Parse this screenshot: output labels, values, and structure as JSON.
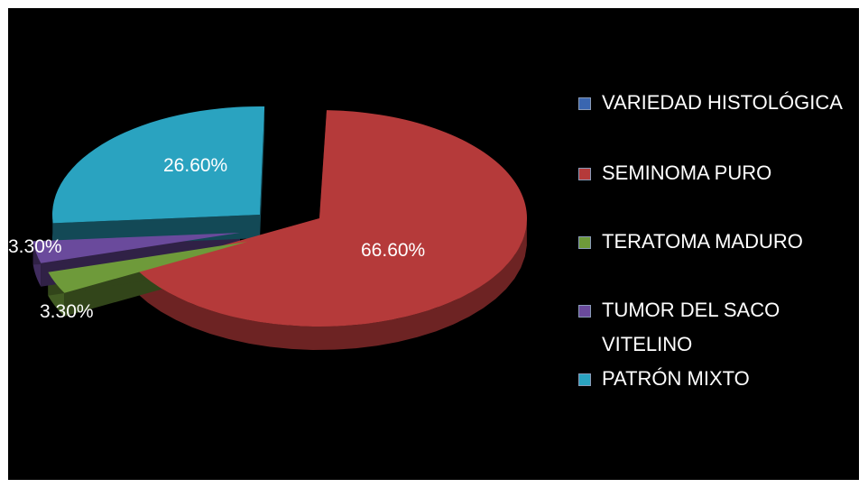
{
  "chart_data": {
    "type": "pie",
    "categories": [
      "VARIEDAD HISTOLÓGICA",
      "SEMINOMA PURO",
      "TERATOMA MADURO",
      "TUMOR DEL SACO VITELINO",
      "PATRÓN MIXTO"
    ],
    "values": [
      null,
      66.6,
      3.3,
      3.3,
      26.6
    ],
    "data_labels": [
      "",
      "66.60%",
      "3.30%",
      "3.30%",
      "26.60%"
    ],
    "colors": [
      "#3a66b0",
      "#b53a3a",
      "#6e9a3a",
      "#6a4a9c",
      "#2aa3c0"
    ],
    "style": "3d-exploded",
    "legend_position": "right"
  },
  "legend": {
    "items": [
      {
        "label": "VARIEDAD HISTOLÓGICA",
        "color": "#3a66b0"
      },
      {
        "label": "SEMINOMA PURO",
        "color": "#b53a3a"
      },
      {
        "label": "TERATOMA MADURO",
        "color": "#6e9a3a"
      },
      {
        "label": "TUMOR DEL SACO VITELINO",
        "color": "#6a4a9c"
      },
      {
        "label": "PATRÓN MIXTO",
        "color": "#2aa3c0"
      }
    ]
  }
}
